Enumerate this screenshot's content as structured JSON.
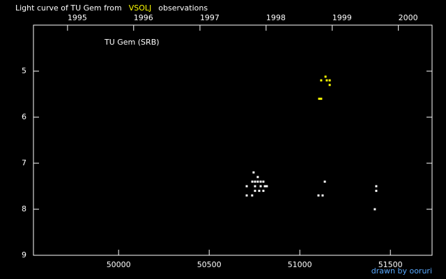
{
  "chart_data": {
    "type": "scatter",
    "title": [
      "Light curve of TU Gem from",
      "VSOLJ",
      "observations"
    ],
    "annotation": "TU Gem (SRB)",
    "credit": "drawn by ooruri",
    "xlim": [
      49530,
      51730
    ],
    "ylim": [
      9,
      4
    ],
    "xticks": [
      50000,
      50500,
      51000,
      51500
    ],
    "x2ticks": [
      {
        "value": 49718,
        "label": "1995"
      },
      {
        "value": 50083,
        "label": "1996"
      },
      {
        "value": 50449,
        "label": "1997"
      },
      {
        "value": 50814,
        "label": "1998"
      },
      {
        "value": 51179,
        "label": "1999"
      },
      {
        "value": 51544,
        "label": "2000"
      }
    ],
    "yticks": [
      5,
      6,
      7,
      8,
      9
    ],
    "series": [
      {
        "color": "#ffff00",
        "x": [
          51142,
          51118,
          51149,
          51165,
          51165,
          51107,
          51118
        ],
        "values": [
          5.12,
          5.2,
          5.2,
          5.2,
          5.3,
          5.6,
          5.6
        ]
      },
      {
        "color": "#ffffff",
        "x": [
          50707,
          50707,
          50737,
          50745,
          50738,
          50753,
          50768,
          50784,
          50799,
          50768,
          50753,
          50784,
          50807,
          50818,
          50753,
          50776,
          50799,
          51138,
          51103,
          51126,
          51422,
          51422,
          51414
        ],
        "values": [
          7.5,
          7.7,
          7.7,
          7.2,
          7.4,
          7.4,
          7.4,
          7.4,
          7.4,
          7.3,
          7.5,
          7.5,
          7.5,
          7.5,
          7.6,
          7.6,
          7.6,
          7.4,
          7.7,
          7.7,
          7.5,
          7.6,
          8.0
        ]
      }
    ]
  }
}
